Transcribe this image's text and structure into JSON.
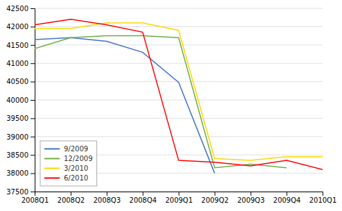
{
  "chart_data": {
    "type": "line",
    "categories": [
      "2008Q1",
      "2008Q2",
      "2008Q3",
      "2008Q4",
      "2009Q1",
      "2009Q2",
      "2009Q3",
      "2009Q4",
      "2010Q1"
    ],
    "series": [
      {
        "name": "9/2009",
        "color": "#4472C4",
        "values": [
          41650,
          41700,
          41600,
          41300,
          40480,
          38000,
          null,
          null,
          null
        ]
      },
      {
        "name": "12/2009",
        "color": "#70AD47",
        "values": [
          41400,
          41700,
          41750,
          41750,
          41700,
          38150,
          38250,
          38150,
          null
        ]
      },
      {
        "name": "3/2010",
        "color": "#FFD700",
        "values": [
          41950,
          41950,
          42100,
          42100,
          41900,
          38400,
          38350,
          38450,
          38450
        ]
      },
      {
        "name": "6/2010",
        "color": "#FF0000",
        "values": [
          42050,
          42200,
          42050,
          41850,
          38350,
          38300,
          38200,
          38350,
          38100
        ]
      }
    ],
    "ylim": [
      37500,
      42500
    ],
    "yticks": [
      37500,
      38000,
      38500,
      39000,
      39500,
      40000,
      40500,
      41000,
      41500,
      42000,
      42500
    ],
    "grid": true,
    "legend": "lower-left"
  }
}
